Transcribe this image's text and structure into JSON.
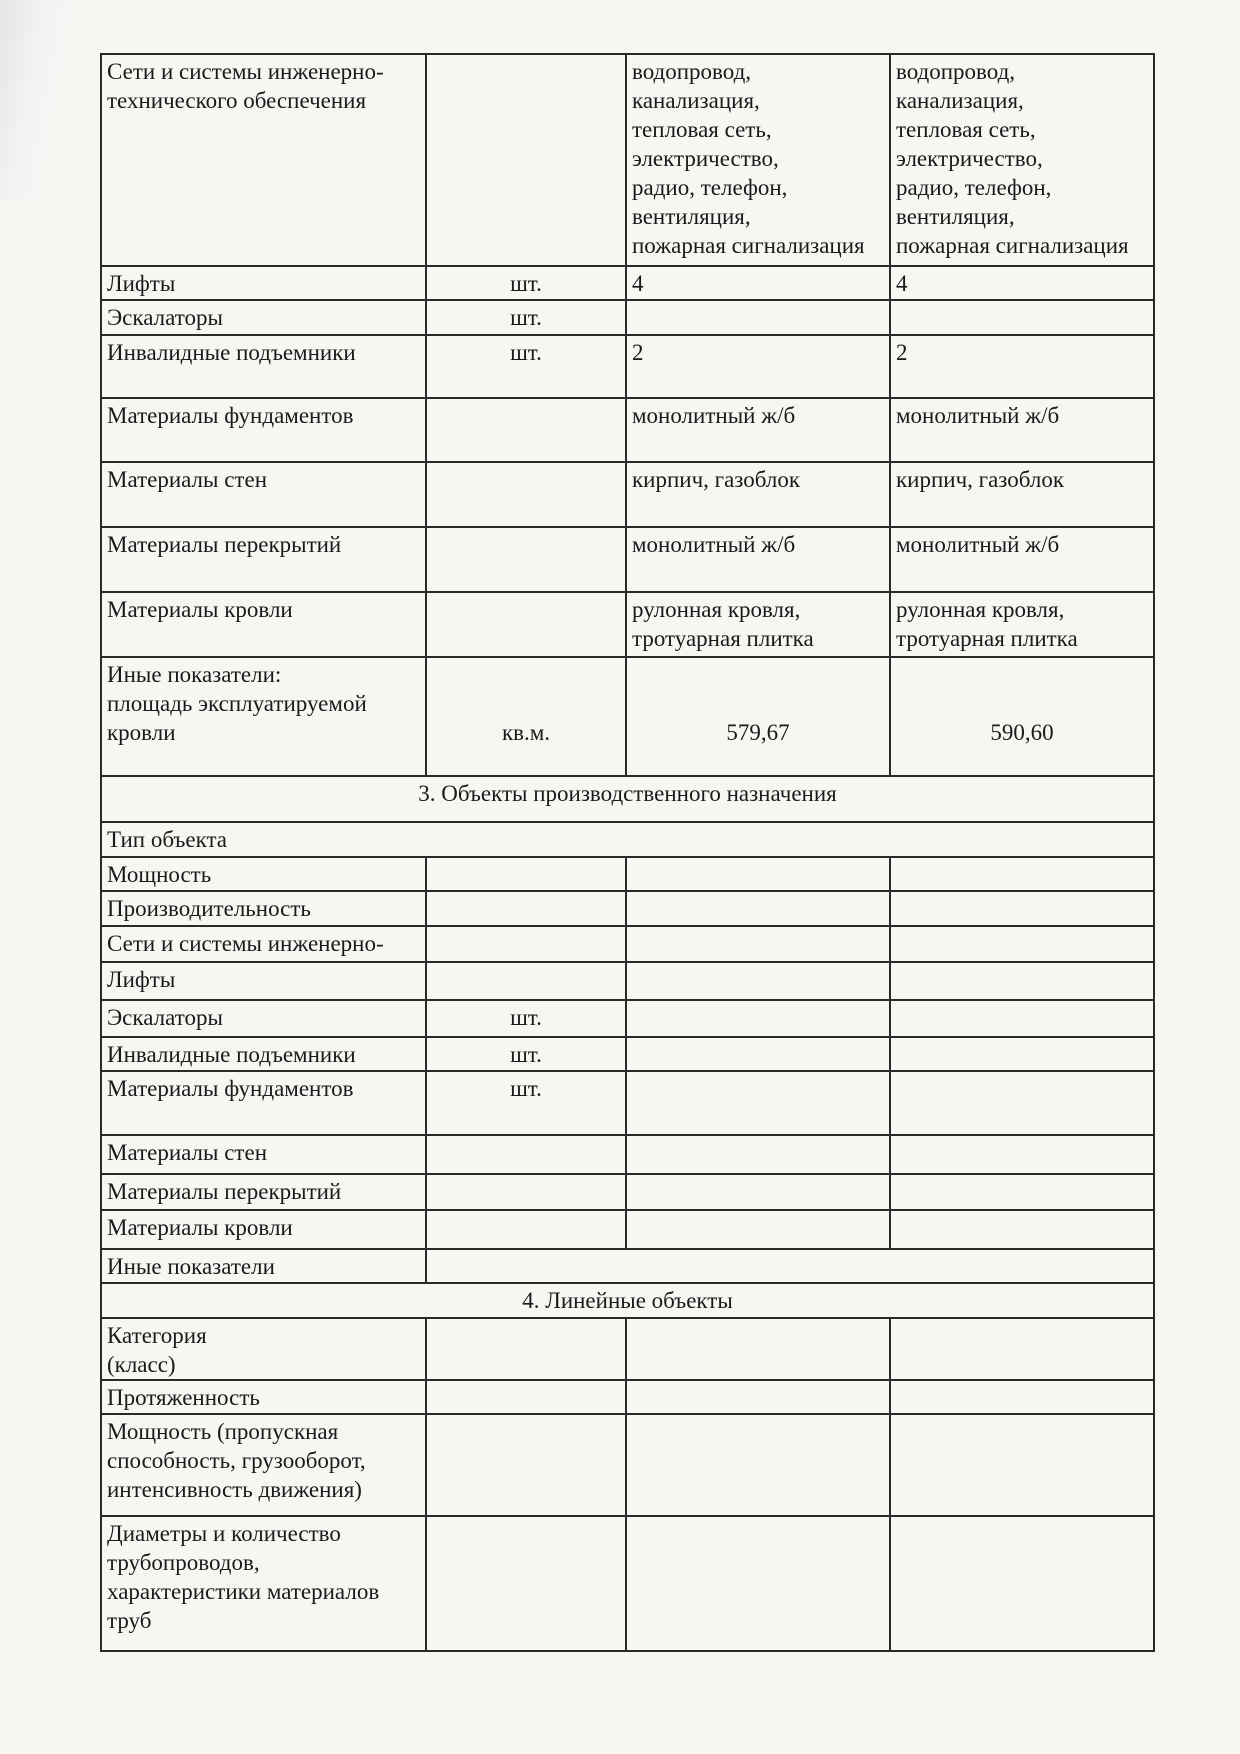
{
  "section2_rows": [
    {
      "label": "Сети и системы инженерно-\nтехнического обеспечения",
      "unit": "",
      "v1": "водопровод,\nканализация,\nтепловая сеть,\nэлектричество,\nрадио, телефон,\nвентиляция,\nпожарная сигнализация",
      "v2": "водопровод,\nканализация,\nтепловая сеть,\nэлектричество,\nрадио, телефон,\nвентиляция,\nпожарная сигнализация"
    },
    {
      "label": "Лифты",
      "unit": "шт.",
      "v1": "4",
      "v2": "4"
    },
    {
      "label": "Эскалаторы",
      "unit": "шт.",
      "v1": "",
      "v2": ""
    },
    {
      "label": "Инвалидные подъемники",
      "unit": "шт.",
      "v1": "2",
      "v2": "2"
    },
    {
      "label": "Материалы фундаментов",
      "unit": "",
      "v1": "монолитный ж/б",
      "v2": "монолитный ж/б"
    },
    {
      "label": "Материалы стен",
      "unit": "",
      "v1": "кирпич, газоблок",
      "v2": "кирпич, газоблок"
    },
    {
      "label": "Материалы перекрытий",
      "unit": "",
      "v1": "монолитный ж/б",
      "v2": "монолитный ж/б"
    },
    {
      "label": "Материалы кровли",
      "unit": "",
      "v1": "рулонная кровля,\nтротуарная плитка",
      "v2": "рулонная кровля,\nтротуарная плитка"
    },
    {
      "label": "Иные показатели:\nплощадь эксплуатируемой\nкровли",
      "unit": "кв.м.",
      "v1": "579,67",
      "v2": "590,60"
    }
  ],
  "section3": {
    "title": "3. Объекты производственного назначения",
    "type_label": "Тип объекта",
    "rows": [
      {
        "label": "Мощность",
        "unit": "",
        "v1": "",
        "v2": ""
      },
      {
        "label": "Производительность",
        "unit": "",
        "v1": "",
        "v2": ""
      },
      {
        "label": "Сети и системы инженерно-",
        "unit": "",
        "v1": "",
        "v2": ""
      },
      {
        "label": "Лифты",
        "unit": "",
        "v1": "",
        "v2": ""
      },
      {
        "label": "Эскалаторы",
        "unit": "шт.",
        "v1": "",
        "v2": ""
      },
      {
        "label": "Инвалидные подъемники",
        "unit": "шт.",
        "v1": "",
        "v2": ""
      },
      {
        "label": "Материалы фундаментов",
        "unit": "шт.",
        "v1": "",
        "v2": ""
      },
      {
        "label": "Материалы стен",
        "unit": "",
        "v1": "",
        "v2": ""
      },
      {
        "label": "Материалы перекрытий",
        "unit": "",
        "v1": "",
        "v2": ""
      },
      {
        "label": "Материалы кровли",
        "unit": "",
        "v1": "",
        "v2": ""
      }
    ],
    "other_label": "Иные показатели"
  },
  "section4": {
    "title": "4. Линейные объекты",
    "rows": [
      {
        "label": "Категория\n(класс)",
        "unit": "",
        "v1": "",
        "v2": ""
      },
      {
        "label": "Протяженность",
        "unit": "",
        "v1": "",
        "v2": ""
      },
      {
        "label": "Мощность (пропускная\nспособность, грузооборот,\nинтенсивность движения)",
        "unit": "",
        "v1": "",
        "v2": ""
      },
      {
        "label": "Диаметры и количество\nтрубопроводов,\nхарактеристики материалов\nтруб",
        "unit": "",
        "v1": "",
        "v2": ""
      }
    ]
  }
}
